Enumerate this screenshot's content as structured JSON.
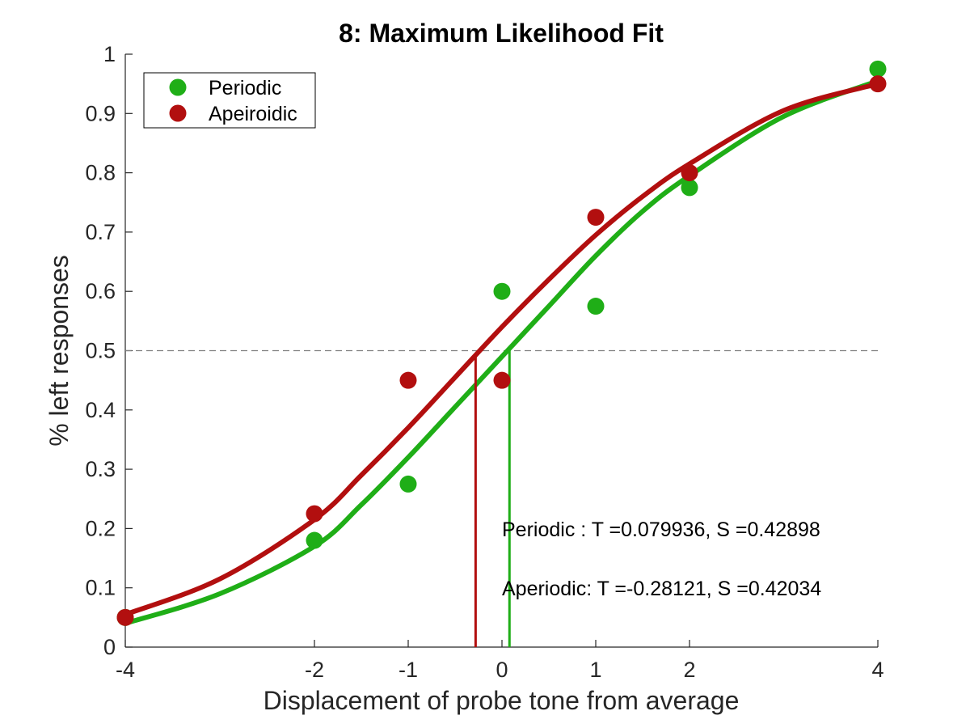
{
  "chart_data": {
    "type": "scatter",
    "title": "8: Maximum Likelihood Fit",
    "xlabel": "Displacement of probe tone from average",
    "ylabel": "% left responses",
    "xlim": [
      -4,
      4
    ],
    "ylim": [
      0,
      1
    ],
    "x_scale": "nonlinear (ticks at -4, -2, -1, 0, 1, 2, 4)",
    "x_ticks": [
      -4,
      -2,
      -1,
      0,
      1,
      2,
      4
    ],
    "x_tick_labels": [
      "-4",
      "-2",
      "-1",
      "0",
      "1",
      "2",
      "4"
    ],
    "y_ticks": [
      0,
      0.1,
      0.2,
      0.3,
      0.4,
      0.5,
      0.6,
      0.7,
      0.8,
      0.9,
      1
    ],
    "y_tick_labels": [
      "0",
      "0.1",
      "0.2",
      "0.3",
      "0.4",
      "0.5",
      "0.6",
      "0.7",
      "0.8",
      "0.9",
      "1"
    ],
    "grid": false,
    "legend_position": "top-left",
    "reference_line": {
      "y": 0.5,
      "style": "dashed",
      "color": "#808080"
    },
    "series": [
      {
        "name": "Periodic",
        "color": "#1fae17",
        "points": {
          "x": [
            -4,
            -2,
            -1,
            0,
            1,
            2,
            4
          ],
          "y": [
            0.05,
            0.18,
            0.275,
            0.6,
            0.575,
            0.775,
            0.975
          ]
        },
        "fit_curve": {
          "x": [
            -4,
            -3,
            -2,
            -1.5,
            -1,
            -0.5,
            0,
            0.5,
            1,
            1.5,
            2,
            3,
            4
          ],
          "y": [
            0.04,
            0.09,
            0.17,
            0.24,
            0.32,
            0.405,
            0.49,
            0.575,
            0.66,
            0.735,
            0.795,
            0.895,
            0.955
          ]
        },
        "threshold": 0.079936
      },
      {
        "name": "Apeiroidic",
        "color": "#b20f0f",
        "points": {
          "x": [
            -4,
            -2,
            -1,
            0,
            1,
            2,
            4
          ],
          "y": [
            0.05,
            0.225,
            0.45,
            0.45,
            0.725,
            0.8,
            0.95
          ]
        },
        "fit_curve": {
          "x": [
            -4,
            -3,
            -2,
            -1.5,
            -1,
            -0.5,
            0,
            0.5,
            1,
            1.5,
            2,
            3,
            4
          ],
          "y": [
            0.055,
            0.115,
            0.215,
            0.29,
            0.37,
            0.455,
            0.54,
            0.62,
            0.695,
            0.76,
            0.815,
            0.905,
            0.95
          ]
        },
        "threshold": -0.28121
      }
    ],
    "annotations": [
      "Periodic  : T =0.079936, S =0.42898",
      "Aperiodic: T =-0.28121, S =0.42034"
    ]
  }
}
